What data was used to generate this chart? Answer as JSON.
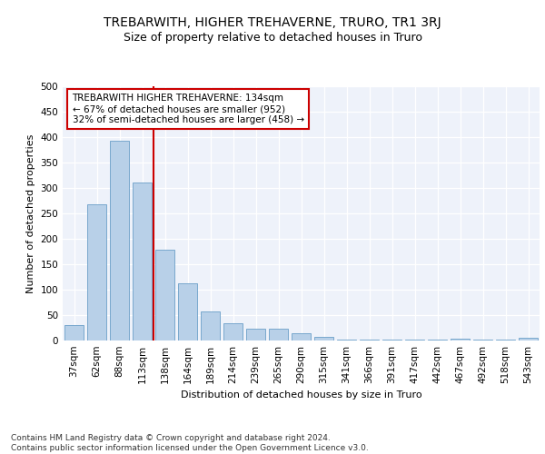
{
  "title": "TREBARWITH, HIGHER TREHAVERNE, TRURO, TR1 3RJ",
  "subtitle": "Size of property relative to detached houses in Truro",
  "xlabel": "Distribution of detached houses by size in Truro",
  "ylabel": "Number of detached properties",
  "categories": [
    "37sqm",
    "62sqm",
    "88sqm",
    "113sqm",
    "138sqm",
    "164sqm",
    "189sqm",
    "214sqm",
    "239sqm",
    "265sqm",
    "290sqm",
    "315sqm",
    "341sqm",
    "366sqm",
    "391sqm",
    "417sqm",
    "442sqm",
    "467sqm",
    "492sqm",
    "518sqm",
    "543sqm"
  ],
  "values": [
    30,
    267,
    393,
    310,
    178,
    113,
    58,
    34,
    24,
    24,
    14,
    7,
    1,
    1,
    1,
    1,
    1,
    4,
    1,
    1,
    5
  ],
  "bar_color": "#b8d0e8",
  "bar_edgecolor": "#6a9fc8",
  "vline_color": "#cc0000",
  "annotation_text": "TREBARWITH HIGHER TREHAVERNE: 134sqm\n← 67% of detached houses are smaller (952)\n32% of semi-detached houses are larger (458) →",
  "annotation_box_edgecolor": "#cc0000",
  "ylim": [
    0,
    500
  ],
  "yticks": [
    0,
    50,
    100,
    150,
    200,
    250,
    300,
    350,
    400,
    450,
    500
  ],
  "background_color": "#eef2fa",
  "footer_text": "Contains HM Land Registry data © Crown copyright and database right 2024.\nContains public sector information licensed under the Open Government Licence v3.0.",
  "title_fontsize": 10,
  "subtitle_fontsize": 9,
  "axis_label_fontsize": 8,
  "tick_fontsize": 7.5,
  "annotation_fontsize": 7.5,
  "footer_fontsize": 6.5
}
